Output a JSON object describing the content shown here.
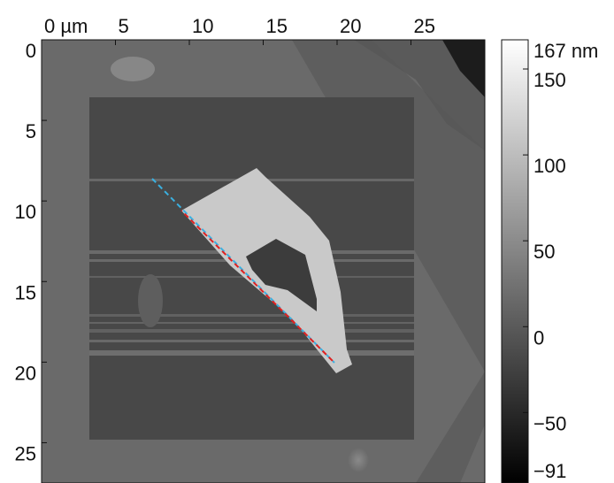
{
  "chart_data": {
    "type": "image",
    "xlim": [
      0,
      30
    ],
    "xticks": [
      {
        "value": 0,
        "label": "0 µm"
      },
      5,
      10,
      15,
      20,
      25
    ],
    "ylim": [
      0,
      27.5
    ],
    "yticks": [
      0,
      5,
      10,
      15,
      20,
      25
    ],
    "colorbar": {
      "clim": [
        -91,
        167
      ],
      "colors": [
        "#000000",
        "#ffffff"
      ],
      "ticks": [
        {
          "value": 167,
          "label": "167 nm"
        },
        150,
        100,
        50,
        0,
        {
          "value": -50,
          "label": "−50"
        },
        {
          "value": -91,
          "label": "−91"
        }
      ]
    }
  }
}
